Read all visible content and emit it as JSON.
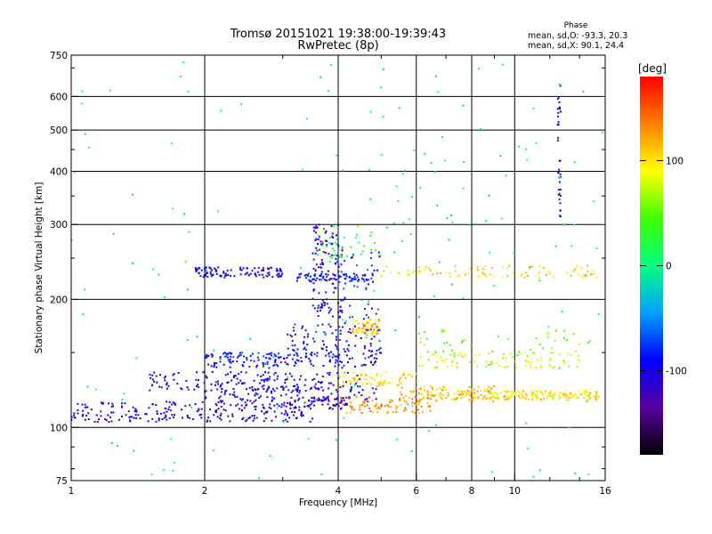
{
  "chart_data": {
    "type": "scatter",
    "title": "Tromsø 20151021 19:38:00-19:39:43",
    "subtitle": "RwPretec (8p)",
    "xlabel": "Frequency [MHz]",
    "ylabel": "Stationary phase Virtual Height [km]",
    "x_scale": "log",
    "y_scale": "log",
    "xlim": [
      1,
      16
    ],
    "ylim": [
      75,
      750
    ],
    "x_ticks": [
      1,
      2,
      4,
      6,
      8,
      10,
      16
    ],
    "x_tick_labels": [
      "1",
      "2",
      "4",
      "6",
      "8",
      "10",
      "16"
    ],
    "y_ticks": [
      75,
      100,
      200,
      300,
      400,
      500,
      600,
      750
    ],
    "y_tick_labels": [
      "75",
      "100",
      "200",
      "300",
      "400",
      "500",
      "600",
      "750"
    ],
    "grid": true,
    "color_scale": {
      "label": "[deg]",
      "ticks": [
        -100,
        0,
        100
      ],
      "tick_labels": [
        "-100",
        "0",
        "100"
      ],
      "range": [
        -180,
        180
      ],
      "colors": [
        "#000000",
        "#5a00a0",
        "#0000ff",
        "#00a0ff",
        "#00ff80",
        "#40ff00",
        "#ffff00",
        "#ff8000",
        "#ff0000"
      ]
    },
    "stats": {
      "heading": "Phase",
      "line_o": "mean, sd,O: -93.3, 20.3",
      "line_x": "mean, sd,X: 90.1, 24.4"
    },
    "series": [
      {
        "freq_range": [
          1.0,
          3.5
        ],
        "height_range": [
          103,
          115
        ],
        "phase": -110,
        "n": 240
      },
      {
        "freq_range": [
          3.4,
          4.2
        ],
        "height_range": [
          110,
          118
        ],
        "phase": -120,
        "n": 50
      },
      {
        "freq_range": [
          2.0,
          5.0
        ],
        "height_range": [
          115,
          125
        ],
        "phase": -100,
        "n": 120
      },
      {
        "freq_range": [
          1.5,
          4.5
        ],
        "height_range": [
          122,
          135
        ],
        "phase": -105,
        "n": 150
      },
      {
        "freq_range": [
          2.0,
          5.0
        ],
        "height_range": [
          138,
          150
        ],
        "phase": -95,
        "n": 130
      },
      {
        "freq_range": [
          2.0,
          4.0
        ],
        "height_range": [
          145,
          150
        ],
        "phase": -85,
        "n": 50
      },
      {
        "freq_range": [
          3.0,
          5.0
        ],
        "height_range": [
          150,
          175
        ],
        "phase": -90,
        "n": 90
      },
      {
        "freq_range": [
          3.5,
          4.1
        ],
        "height_range": [
          180,
          300
        ],
        "phase": -105,
        "n": 120
      },
      {
        "freq_range": [
          4.0,
          5.0
        ],
        "height_range": [
          175,
          260
        ],
        "phase": -80,
        "n": 50
      },
      {
        "freq_range": [
          1.9,
          3.0
        ],
        "height_range": [
          225,
          238
        ],
        "phase": -100,
        "n": 110
      },
      {
        "freq_range": [
          3.2,
          4.8
        ],
        "height_range": [
          220,
          230
        ],
        "phase": -90,
        "n": 70
      },
      {
        "freq_range": [
          3.5,
          5.0
        ],
        "height_range": [
          250,
          300
        ],
        "phase": 30,
        "n": 40
      },
      {
        "freq_range": [
          4.3,
          5.0
        ],
        "height_range": [
          165,
          180
        ],
        "phase": 110,
        "n": 60
      },
      {
        "freq_range": [
          4.0,
          6.5
        ],
        "height_range": [
          108,
          118
        ],
        "phase": 130,
        "n": 90
      },
      {
        "freq_range": [
          4.0,
          6.0
        ],
        "height_range": [
          125,
          135
        ],
        "phase": 100,
        "n": 70
      },
      {
        "freq_range": [
          5.5,
          9.0
        ],
        "height_range": [
          115,
          125
        ],
        "phase": 110,
        "n": 120
      },
      {
        "freq_range": [
          8.5,
          15.5
        ],
        "height_range": [
          116,
          122
        ],
        "phase": 100,
        "n": 160
      },
      {
        "freq_range": [
          6.0,
          14.0
        ],
        "height_range": [
          138,
          150
        ],
        "phase": 80,
        "n": 90
      },
      {
        "freq_range": [
          6.0,
          15.0
        ],
        "height_range": [
          150,
          170
        ],
        "phase": 50,
        "n": 40
      },
      {
        "freq_range": [
          5.0,
          15.5
        ],
        "height_range": [
          225,
          240
        ],
        "phase": 100,
        "n": 90
      },
      {
        "freq_range": [
          5.0,
          8.0
        ],
        "height_range": [
          300,
          440
        ],
        "phase": 0,
        "n": 15
      },
      {
        "freq_range": [
          12.5,
          12.7
        ],
        "height_range": [
          310,
          650
        ],
        "phase": -110,
        "n": 35
      },
      {
        "freq_range": [
          1.0,
          16.0
        ],
        "height_range": [
          75,
          750
        ],
        "phase": 0,
        "n": 160
      }
    ]
  }
}
